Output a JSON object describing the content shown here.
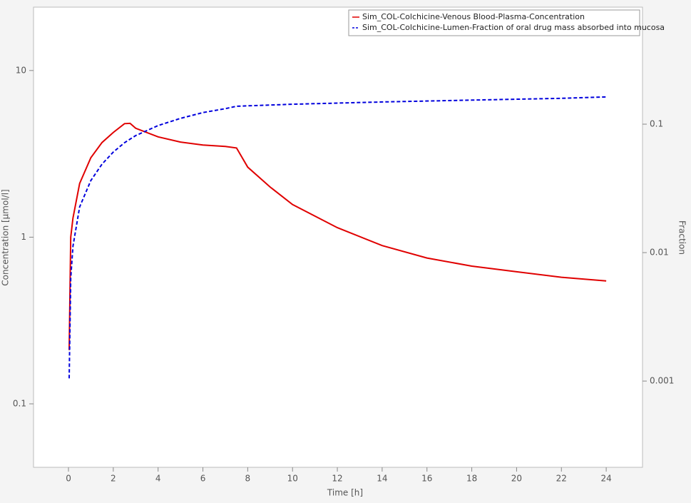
{
  "chart_data": {
    "type": "line",
    "x_label": "Time [h]",
    "y_label": "Concentration [µmol/l]",
    "y2_label": "Fraction",
    "xlim": [
      -1.56,
      25.62
    ],
    "xticks": [
      0,
      2,
      4,
      6,
      8,
      10,
      12,
      14,
      16,
      18,
      20,
      22,
      24
    ],
    "ylim": [
      0.0416,
      24.0
    ],
    "yticks": [
      0.1,
      1,
      10
    ],
    "ylog": true,
    "y2lim": [
      0.000213,
      0.815
    ],
    "y2ticks": [
      0.001,
      0.01,
      0.1
    ],
    "y2log": true,
    "legend": "upper right",
    "series": [
      {
        "name": "Sim_COL-Colchicine-Venous Blood-Plasma-Concentration",
        "color": "#e00000",
        "style": "solid",
        "x": [
          0.03,
          0.1,
          0.2,
          0.5,
          1,
          1.5,
          2,
          2.5,
          2.75,
          3,
          4,
          5,
          6,
          7,
          7.5,
          8,
          9,
          10,
          12,
          14,
          16,
          18,
          20,
          22,
          24
        ],
        "values": [
          0.21,
          1.0,
          1.3,
          2.1,
          3.0,
          3.7,
          4.25,
          4.8,
          4.82,
          4.5,
          4.0,
          3.72,
          3.57,
          3.5,
          3.43,
          2.63,
          2.0,
          1.57,
          1.14,
          0.89,
          0.75,
          0.67,
          0.62,
          0.575,
          0.546
        ]
      },
      {
        "name": "Sim_COL-Colchicine-Lumen-Fraction of oral drug mass absorbed into mucosa",
        "color": "#0000dd",
        "style": "dashed",
        "axis": "y2",
        "x": [
          0.03,
          0.1,
          0.2,
          0.5,
          1,
          1.5,
          2,
          2.5,
          3,
          4,
          5,
          6,
          7,
          7.5,
          10,
          14,
          18,
          22,
          24
        ],
        "values": [
          0.00105,
          0.0063,
          0.0112,
          0.0227,
          0.0364,
          0.0489,
          0.0607,
          0.0717,
          0.0815,
          0.0975,
          0.111,
          0.123,
          0.132,
          0.138,
          0.143,
          0.149,
          0.154,
          0.159,
          0.163
        ]
      }
    ]
  }
}
